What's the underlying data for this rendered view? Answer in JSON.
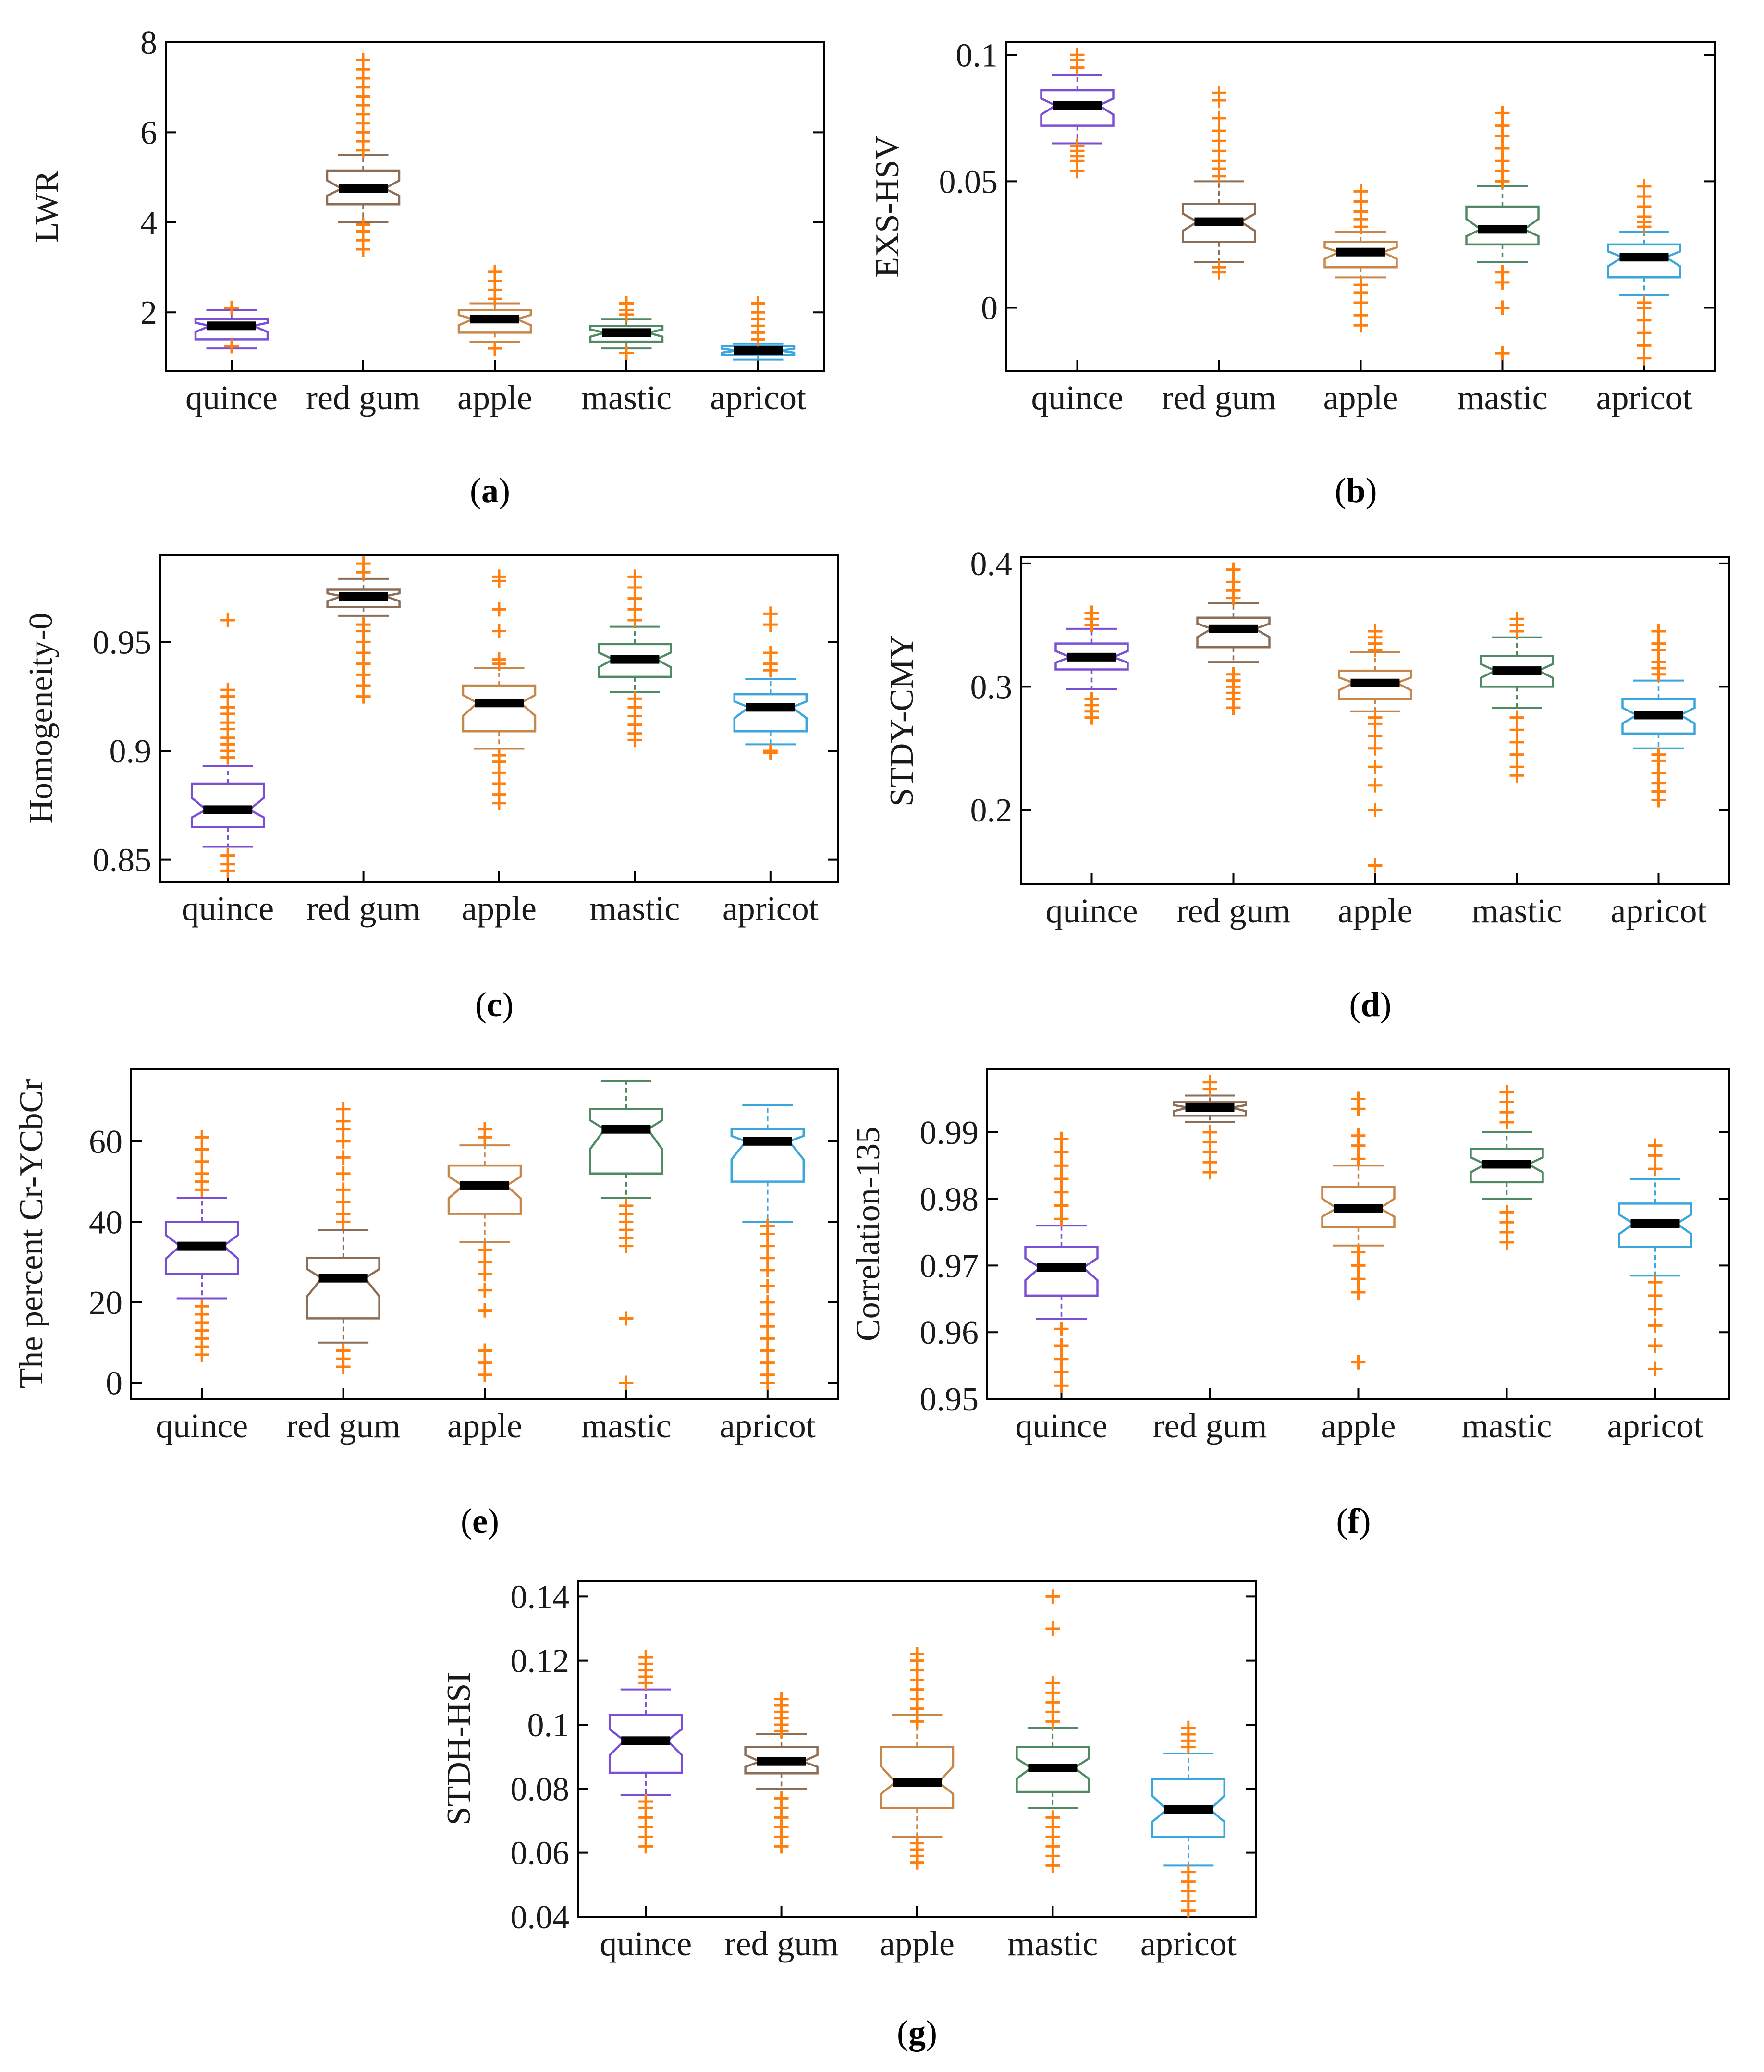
{
  "figure": {
    "categories": [
      "quince",
      "red gum",
      "apple",
      "mastic",
      "apricot"
    ],
    "colors": {
      "quince": "#7b4fd4",
      "red gum": "#8c6d56",
      "apple": "#c8874a",
      "mastic": "#4f8a63",
      "apricot": "#3aa6dc",
      "outlier": "#ff7f0e",
      "median": "#000000"
    }
  },
  "chart_data": [
    {
      "id": "a",
      "type": "box",
      "ylabel": "LWR",
      "caption": "a",
      "ylim": [
        0.7,
        8
      ],
      "yticks": [
        2,
        4,
        6,
        8
      ],
      "tick_labels": [
        "2",
        "4",
        "6",
        "8"
      ],
      "boxes": [
        {
          "category": "quince",
          "q1": 1.4,
          "median": 1.7,
          "q3": 1.85,
          "whisker_low": 1.2,
          "whisker_high": 2.05,
          "outliers": [
            2.1,
            1.25
          ]
        },
        {
          "category": "red gum",
          "q1": 4.4,
          "median": 4.75,
          "q3": 5.15,
          "whisker_low": 4.0,
          "whisker_high": 5.5,
          "outliers": [
            3.4,
            3.6,
            3.8,
            3.95,
            5.6,
            5.8,
            6.0,
            6.2,
            6.4,
            6.6,
            6.8,
            7.0,
            7.2,
            7.4,
            7.6
          ]
        },
        {
          "category": "apple",
          "q1": 1.55,
          "median": 1.85,
          "q3": 2.05,
          "whisker_low": 1.35,
          "whisker_high": 2.2,
          "outliers": [
            1.2,
            2.3,
            2.5,
            2.7,
            2.9
          ]
        },
        {
          "category": "mastic",
          "q1": 1.35,
          "median": 1.55,
          "q3": 1.7,
          "whisker_low": 1.2,
          "whisker_high": 1.85,
          "outliers": [
            1.1,
            1.95,
            2.05,
            2.2
          ]
        },
        {
          "category": "apricot",
          "q1": 1.05,
          "median": 1.15,
          "q3": 1.25,
          "whisker_low": 0.95,
          "whisker_high": 1.3,
          "outliers": [
            1.4,
            1.55,
            1.7,
            1.85,
            2.0,
            2.2
          ]
        }
      ]
    },
    {
      "id": "b",
      "type": "box",
      "ylabel": "EXS-HSV",
      "caption": "b",
      "ylim": [
        -0.025,
        0.105
      ],
      "yticks": [
        0,
        0.05,
        0.1
      ],
      "tick_labels": [
        "0",
        "0.05",
        "0.1"
      ],
      "boxes": [
        {
          "category": "quince",
          "q1": 0.072,
          "median": 0.08,
          "q3": 0.086,
          "whisker_low": 0.065,
          "whisker_high": 0.092,
          "outliers": [
            0.054,
            0.058,
            0.06,
            0.062,
            0.064,
            0.095,
            0.098,
            0.1
          ]
        },
        {
          "category": "red gum",
          "q1": 0.026,
          "median": 0.034,
          "q3": 0.041,
          "whisker_low": 0.018,
          "whisker_high": 0.05,
          "outliers": [
            0.014,
            0.016,
            0.052,
            0.055,
            0.058,
            0.062,
            0.066,
            0.07,
            0.075,
            0.082,
            0.085
          ]
        },
        {
          "category": "apple",
          "q1": 0.016,
          "median": 0.022,
          "q3": 0.026,
          "whisker_low": 0.012,
          "whisker_high": 0.03,
          "outliers": [
            -0.007,
            -0.003,
            0.002,
            0.006,
            0.009,
            0.032,
            0.035,
            0.038,
            0.042,
            0.046
          ]
        },
        {
          "category": "mastic",
          "q1": 0.025,
          "median": 0.031,
          "q3": 0.04,
          "whisker_low": 0.018,
          "whisker_high": 0.048,
          "outliers": [
            -0.018,
            0.0,
            0.01,
            0.014,
            0.05,
            0.054,
            0.058,
            0.063,
            0.068,
            0.072,
            0.077
          ]
        },
        {
          "category": "apricot",
          "q1": 0.012,
          "median": 0.02,
          "q3": 0.025,
          "whisker_low": 0.005,
          "whisker_high": 0.03,
          "outliers": [
            -0.02,
            -0.015,
            -0.01,
            -0.005,
            0.0,
            0.002,
            0.032,
            0.034,
            0.036,
            0.04,
            0.044,
            0.048
          ]
        }
      ]
    },
    {
      "id": "c",
      "type": "box",
      "ylabel": "Homogeneity-0",
      "caption": "c",
      "ylim": [
        0.84,
        0.99
      ],
      "yticks": [
        0.85,
        0.9,
        0.95
      ],
      "tick_labels": [
        "0.85",
        "0.9",
        "0.95"
      ],
      "boxes": [
        {
          "category": "quince",
          "q1": 0.865,
          "median": 0.873,
          "q3": 0.885,
          "whisker_low": 0.856,
          "whisker_high": 0.893,
          "outliers": [
            0.845,
            0.848,
            0.852,
            0.897,
            0.9,
            0.903,
            0.906,
            0.91,
            0.913,
            0.917,
            0.92,
            0.925,
            0.928,
            0.96
          ]
        },
        {
          "category": "red gum",
          "q1": 0.966,
          "median": 0.971,
          "q3": 0.974,
          "whisker_low": 0.962,
          "whisker_high": 0.979,
          "outliers": [
            0.925,
            0.93,
            0.935,
            0.94,
            0.945,
            0.95,
            0.955,
            0.958,
            0.982,
            0.986
          ]
        },
        {
          "category": "apple",
          "q1": 0.909,
          "median": 0.922,
          "q3": 0.93,
          "whisker_low": 0.901,
          "whisker_high": 0.938,
          "outliers": [
            0.876,
            0.88,
            0.885,
            0.89,
            0.895,
            0.898,
            0.94,
            0.942,
            0.955,
            0.965,
            0.978,
            0.98
          ]
        },
        {
          "category": "mastic",
          "q1": 0.934,
          "median": 0.942,
          "q3": 0.949,
          "whisker_low": 0.927,
          "whisker_high": 0.957,
          "outliers": [
            0.905,
            0.908,
            0.912,
            0.916,
            0.92,
            0.924,
            0.96,
            0.965,
            0.97,
            0.975,
            0.98
          ]
        },
        {
          "category": "apricot",
          "q1": 0.909,
          "median": 0.92,
          "q3": 0.926,
          "whisker_low": 0.903,
          "whisker_high": 0.933,
          "outliers": [
            0.899,
            0.9,
            0.937,
            0.94,
            0.945,
            0.958,
            0.963
          ]
        }
      ]
    },
    {
      "id": "d",
      "type": "box",
      "ylabel": "STDY-CMY",
      "caption": "d",
      "ylim": [
        0.14,
        0.405
      ],
      "yticks": [
        0.2,
        0.3,
        0.4
      ],
      "tick_labels": [
        "0.2",
        "0.3",
        "0.4"
      ],
      "boxes": [
        {
          "category": "quince",
          "q1": 0.314,
          "median": 0.324,
          "q3": 0.335,
          "whisker_low": 0.298,
          "whisker_high": 0.347,
          "outliers": [
            0.275,
            0.28,
            0.285,
            0.29,
            0.35,
            0.355,
            0.36
          ]
        },
        {
          "category": "red gum",
          "q1": 0.332,
          "median": 0.347,
          "q3": 0.356,
          "whisker_low": 0.32,
          "whisker_high": 0.368,
          "outliers": [
            0.283,
            0.29,
            0.295,
            0.3,
            0.305,
            0.31,
            0.372,
            0.378,
            0.385,
            0.395
          ]
        },
        {
          "category": "apple",
          "q1": 0.29,
          "median": 0.303,
          "q3": 0.313,
          "whisker_low": 0.28,
          "whisker_high": 0.328,
          "outliers": [
            0.155,
            0.2,
            0.22,
            0.235,
            0.25,
            0.26,
            0.27,
            0.275,
            0.33,
            0.335,
            0.34,
            0.345
          ]
        },
        {
          "category": "mastic",
          "q1": 0.3,
          "median": 0.313,
          "q3": 0.325,
          "whisker_low": 0.283,
          "whisker_high": 0.34,
          "outliers": [
            0.228,
            0.235,
            0.245,
            0.255,
            0.265,
            0.275,
            0.345,
            0.35,
            0.355
          ]
        },
        {
          "category": "apricot",
          "q1": 0.262,
          "median": 0.277,
          "q3": 0.29,
          "whisker_low": 0.25,
          "whisker_high": 0.305,
          "outliers": [
            0.208,
            0.215,
            0.222,
            0.23,
            0.24,
            0.245,
            0.31,
            0.315,
            0.32,
            0.33,
            0.335,
            0.345
          ]
        }
      ]
    },
    {
      "id": "e",
      "type": "box",
      "ylabel": "The percent Cr-YCbCr",
      "caption": "e",
      "ylim": [
        -4,
        78
      ],
      "yticks": [
        0,
        20,
        40,
        60
      ],
      "tick_labels": [
        "0",
        "20",
        "40",
        "60"
      ],
      "boxes": [
        {
          "category": "quince",
          "q1": 27,
          "median": 34,
          "q3": 40,
          "whisker_low": 21,
          "whisker_high": 46,
          "outliers": [
            7,
            9,
            11,
            13,
            15,
            17,
            19,
            48,
            50,
            52,
            55,
            58,
            61
          ]
        },
        {
          "category": "red gum",
          "q1": 16,
          "median": 26,
          "q3": 31,
          "whisker_low": 10,
          "whisker_high": 38,
          "outliers": [
            4,
            6,
            8,
            40,
            42,
            45,
            48,
            52,
            56,
            60,
            63,
            65,
            68
          ]
        },
        {
          "category": "apple",
          "q1": 42,
          "median": 49,
          "q3": 54,
          "whisker_low": 35,
          "whisker_high": 59,
          "outliers": [
            2,
            5,
            8,
            18,
            23,
            27,
            30,
            33,
            61,
            63
          ]
        },
        {
          "category": "mastic",
          "q1": 52,
          "median": 63,
          "q3": 68,
          "whisker_low": 46,
          "whisker_high": 75,
          "outliers": [
            0,
            16,
            34,
            36,
            38,
            40,
            42,
            44
          ]
        },
        {
          "category": "apricot",
          "q1": 50,
          "median": 60,
          "q3": 63,
          "whisker_low": 40,
          "whisker_high": 69,
          "outliers": [
            0,
            2,
            5,
            8,
            11,
            14,
            17,
            20,
            24,
            28,
            31,
            34,
            37,
            39
          ]
        }
      ]
    },
    {
      "id": "f",
      "type": "box",
      "ylabel": "Correlation-135",
      "caption": "f",
      "ylim": [
        0.95,
        0.9995
      ],
      "yticks": [
        0.95,
        0.96,
        0.97,
        0.98,
        0.99
      ],
      "tick_labels": [
        "0.95",
        "0.96",
        "0.97",
        "0.98",
        "0.99"
      ],
      "boxes": [
        {
          "category": "quince",
          "q1": 0.9655,
          "median": 0.9697,
          "q3": 0.9728,
          "whisker_low": 0.962,
          "whisker_high": 0.976,
          "outliers": [
            0.952,
            0.954,
            0.956,
            0.958,
            0.9605,
            0.977,
            0.979,
            0.981,
            0.983,
            0.985,
            0.987,
            0.989
          ]
        },
        {
          "category": "red gum",
          "q1": 0.9925,
          "median": 0.9937,
          "q3": 0.9945,
          "whisker_low": 0.9915,
          "whisker_high": 0.9955,
          "outliers": [
            0.984,
            0.9855,
            0.987,
            0.9885,
            0.99,
            0.9965,
            0.9975
          ]
        },
        {
          "category": "apple",
          "q1": 0.9758,
          "median": 0.9786,
          "q3": 0.9818,
          "whisker_low": 0.973,
          "whisker_high": 0.985,
          "outliers": [
            0.9555,
            0.966,
            0.968,
            0.97,
            0.972,
            0.986,
            0.988,
            0.9895,
            0.9935,
            0.995
          ]
        },
        {
          "category": "mastic",
          "q1": 0.9825,
          "median": 0.9852,
          "q3": 0.9875,
          "whisker_low": 0.98,
          "whisker_high": 0.99,
          "outliers": [
            0.9735,
            0.975,
            0.9765,
            0.978,
            0.9915,
            0.993,
            0.9945,
            0.996
          ]
        },
        {
          "category": "apricot",
          "q1": 0.9728,
          "median": 0.9763,
          "q3": 0.9793,
          "whisker_low": 0.9685,
          "whisker_high": 0.983,
          "outliers": [
            0.9545,
            0.958,
            0.961,
            0.9635,
            0.9655,
            0.9675,
            0.9845,
            0.9865,
            0.988
          ]
        }
      ]
    },
    {
      "id": "g",
      "type": "box",
      "ylabel": "STDH-HSI",
      "caption": "g",
      "ylim": [
        0.04,
        0.145
      ],
      "yticks": [
        0.04,
        0.06,
        0.08,
        0.1,
        0.12,
        0.14
      ],
      "tick_labels": [
        "0.04",
        "0.06",
        "0.08",
        "0.1",
        "0.12",
        "0.14"
      ],
      "boxes": [
        {
          "category": "quince",
          "q1": 0.085,
          "median": 0.095,
          "q3": 0.103,
          "whisker_low": 0.078,
          "whisker_high": 0.111,
          "outliers": [
            0.062,
            0.065,
            0.068,
            0.071,
            0.074,
            0.076,
            0.113,
            0.115,
            0.117,
            0.119,
            0.121
          ]
        },
        {
          "category": "red gum",
          "q1": 0.0848,
          "median": 0.0885,
          "q3": 0.093,
          "whisker_low": 0.08,
          "whisker_high": 0.097,
          "outliers": [
            0.062,
            0.065,
            0.068,
            0.071,
            0.074,
            0.077,
            0.098,
            0.1,
            0.102,
            0.104,
            0.106,
            0.108
          ]
        },
        {
          "category": "apple",
          "q1": 0.074,
          "median": 0.082,
          "q3": 0.093,
          "whisker_low": 0.065,
          "whisker_high": 0.103,
          "outliers": [
            0.057,
            0.059,
            0.061,
            0.063,
            0.101,
            0.105,
            0.108,
            0.111,
            0.114,
            0.117,
            0.12,
            0.122
          ]
        },
        {
          "category": "mastic",
          "q1": 0.079,
          "median": 0.0865,
          "q3": 0.093,
          "whisker_low": 0.074,
          "whisker_high": 0.099,
          "outliers": [
            0.056,
            0.059,
            0.062,
            0.065,
            0.068,
            0.071,
            0.101,
            0.104,
            0.107,
            0.11,
            0.113,
            0.13,
            0.14
          ]
        },
        {
          "category": "apricot",
          "q1": 0.065,
          "median": 0.0735,
          "q3": 0.083,
          "whisker_low": 0.056,
          "whisker_high": 0.091,
          "outliers": [
            0.042,
            0.045,
            0.048,
            0.051,
            0.054,
            0.093,
            0.095,
            0.097,
            0.099
          ]
        }
      ]
    }
  ]
}
